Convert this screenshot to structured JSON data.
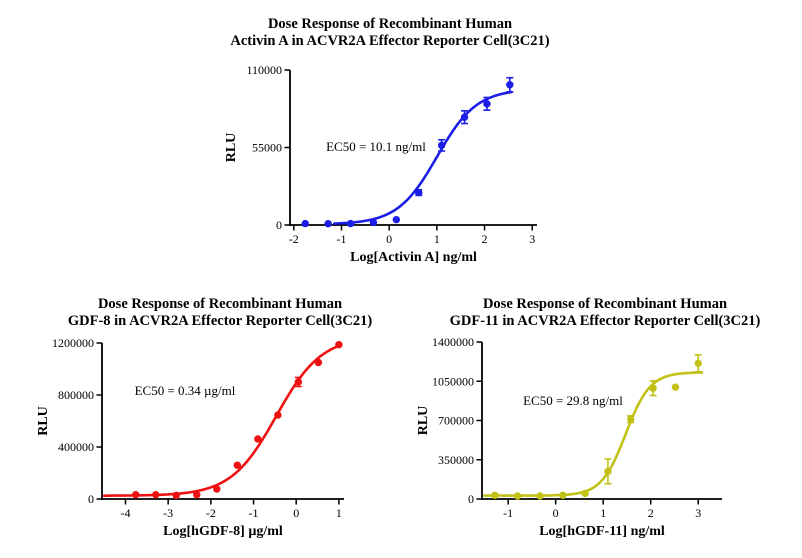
{
  "figure": {
    "background": "#ffffff",
    "axis_color": "#000000"
  },
  "chart_data": [
    {
      "id": "activin-a",
      "type": "scatter",
      "title_lines": [
        "Dose Response of Recombinant Human",
        "Activin A in ACVR2A Effector Reporter Cell(3C21)"
      ],
      "xlabel": "Log[Activin A] ng/ml",
      "ylabel": "RLU",
      "annotation": "EC50 = 10.1 ng/ml",
      "color": "#1d1de8",
      "xlim": [
        -2.08,
        3.1
      ],
      "ylim": [
        0,
        110000
      ],
      "xticks": [
        -2,
        -1,
        0,
        1,
        2,
        3
      ],
      "yticks": [
        0,
        55000,
        110000
      ],
      "legend": "none",
      "grid": false,
      "points": [
        {
          "x": -1.76,
          "y": 1000,
          "err": 0
        },
        {
          "x": -1.28,
          "y": 900,
          "err": 0
        },
        {
          "x": -0.81,
          "y": 1000,
          "err": 0
        },
        {
          "x": -0.33,
          "y": 1800,
          "err": 0
        },
        {
          "x": 0.15,
          "y": 3800,
          "err": 0
        },
        {
          "x": 0.62,
          "y": 23000,
          "err": 2000
        },
        {
          "x": 1.1,
          "y": 56500,
          "err": 4000
        },
        {
          "x": 1.58,
          "y": 76500,
          "err": 4500
        },
        {
          "x": 2.05,
          "y": 86000,
          "err": 4500
        },
        {
          "x": 2.53,
          "y": 99500,
          "err": 5000
        }
      ],
      "fit": {
        "bottom": 500,
        "top": 96500,
        "logec50": 1.004,
        "hill": 1.05,
        "from": -1.15,
        "to": 2.56
      }
    },
    {
      "id": "gdf-8",
      "type": "scatter",
      "title_lines": [
        "Dose Response of Recombinant Human",
        "GDF-8 in ACVR2A Effector Reporter Cell(3C21)"
      ],
      "xlabel": "Log[hGDF-8] µg/ml",
      "ylabel": "RLU",
      "annotation": "EC50 = 0.34 µg/ml",
      "color": "#ee1111",
      "xlim": [
        -4.55,
        1.12
      ],
      "ylim": [
        0,
        1200000
      ],
      "xticks": [
        -4,
        -3,
        -2,
        -1,
        0,
        1
      ],
      "yticks": [
        0,
        400000,
        800000,
        1200000
      ],
      "legend": "none",
      "grid": false,
      "points": [
        {
          "x": -3.76,
          "y": 33000,
          "err": 0
        },
        {
          "x": -3.29,
          "y": 33000,
          "err": 0
        },
        {
          "x": -2.81,
          "y": 28000,
          "err": 0
        },
        {
          "x": -2.33,
          "y": 33000,
          "err": 0
        },
        {
          "x": -1.86,
          "y": 77000,
          "err": 0
        },
        {
          "x": -1.38,
          "y": 260000,
          "err": 0
        },
        {
          "x": -0.9,
          "y": 462000,
          "err": 0
        },
        {
          "x": -0.43,
          "y": 646000,
          "err": 0
        },
        {
          "x": 0.05,
          "y": 900000,
          "err": 35000
        },
        {
          "x": 0.52,
          "y": 1050000,
          "err": 0
        },
        {
          "x": 1.0,
          "y": 1187000,
          "err": 0
        }
      ],
      "fit": {
        "bottom": 25000,
        "top": 1250000,
        "logec50": -0.468,
        "hill": 0.82,
        "from": -4.5,
        "to": 1.0
      }
    },
    {
      "id": "gdf-11",
      "type": "scatter",
      "title_lines": [
        "Dose Response of Recombinant Human",
        "GDF-11 in ACVR2A Effector Reporter Cell(3C21)"
      ],
      "xlabel": "Log[hGDF-11] ng/ml",
      "ylabel": "RLU",
      "annotation": "EC50 = 29.8 ng/ml",
      "color": "#c1c117",
      "xlim": [
        -1.55,
        3.5
      ],
      "ylim": [
        0,
        1400000
      ],
      "xticks": [
        -1,
        0,
        1,
        2,
        3
      ],
      "yticks": [
        0,
        350000,
        700000,
        1050000,
        1400000
      ],
      "legend": "none",
      "grid": false,
      "points": [
        {
          "x": -1.28,
          "y": 33000,
          "err": 0
        },
        {
          "x": -0.8,
          "y": 27000,
          "err": 0
        },
        {
          "x": -0.33,
          "y": 27000,
          "err": 0
        },
        {
          "x": 0.15,
          "y": 33000,
          "err": 0
        },
        {
          "x": 0.62,
          "y": 50000,
          "err": 0
        },
        {
          "x": 1.1,
          "y": 246000,
          "err": 110000
        },
        {
          "x": 1.58,
          "y": 712000,
          "err": 30000
        },
        {
          "x": 2.05,
          "y": 988000,
          "err": 65000
        },
        {
          "x": 2.52,
          "y": 997000,
          "err": 0
        },
        {
          "x": 3.0,
          "y": 1210000,
          "err": 75000
        }
      ],
      "fit": {
        "bottom": 30000,
        "top": 1130000,
        "logec50": 1.474,
        "hill": 1.7,
        "from": -1.5,
        "to": 3.08
      }
    }
  ]
}
